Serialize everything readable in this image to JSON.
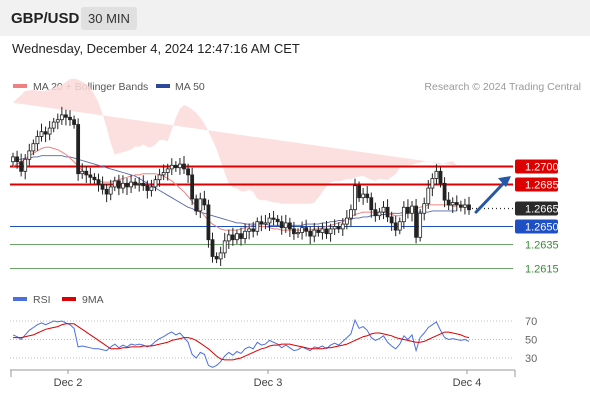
{
  "header": {
    "pair": "GBP/USD",
    "timeframe": "30 MIN"
  },
  "datetime": "Wednesday, December 4, 2024 12:47:16 AM CET",
  "legend": {
    "ma20": "MA 20 + Bollinger Bands",
    "ma50": "MA 50",
    "credit": "Research © 2024 Trading Central"
  },
  "colors": {
    "resistance": "#dd0000",
    "pivot": "#1f4fc4",
    "support": "#3a8a3a",
    "candle": "#222222",
    "ma20": "#f08080",
    "ma50": "#5566aa",
    "band": "#fbd9d9",
    "rsi": "#4c6fe0",
    "rsi_ma": "#dd0000",
    "arrow": "#2457a6",
    "current": "#2a2a2a"
  },
  "chart_data": [
    {
      "type": "candlestick",
      "x_labels": [
        "Dec 2",
        "Dec 3",
        "Dec 4"
      ],
      "ylim": [
        1.2605,
        1.276
      ],
      "current_price": 1.2665,
      "levels": [
        {
          "label": "1.2700",
          "value": 1.27,
          "kind": "resistance"
        },
        {
          "label": "1.2685",
          "value": 1.2685,
          "kind": "resistance"
        },
        {
          "label": "1.2665",
          "value": 1.2665,
          "kind": "current"
        },
        {
          "label": "1.2650",
          "value": 1.265,
          "kind": "pivot"
        },
        {
          "label": "1.2635",
          "value": 1.2635,
          "kind": "support"
        },
        {
          "label": "1.2615",
          "value": 1.2615,
          "kind": "support"
        }
      ],
      "close": [
        1.2708,
        1.2704,
        1.2696,
        1.2706,
        1.2713,
        1.2719,
        1.2725,
        1.2729,
        1.2727,
        1.2732,
        1.2737,
        1.2739,
        1.2743,
        1.2741,
        1.2739,
        1.2735,
        1.2694,
        1.2696,
        1.2693,
        1.2691,
        1.2689,
        1.2685,
        1.2681,
        1.2677,
        1.2683,
        1.2688,
        1.2682,
        1.2686,
        1.2683,
        1.2687,
        1.2685,
        1.2686,
        1.2684,
        1.268,
        1.2683,
        1.2689,
        1.2693,
        1.2695,
        1.2698,
        1.2701,
        1.2699,
        1.2702,
        1.2698,
        1.2693,
        1.2673,
        1.2663,
        1.2673,
        1.2668,
        1.2639,
        1.2625,
        1.2623,
        1.2628,
        1.2638,
        1.2643,
        1.2639,
        1.2644,
        1.264,
        1.2646,
        1.2648,
        1.2646,
        1.2654,
        1.2652,
        1.2653,
        1.2657,
        1.2656,
        1.2654,
        1.2649,
        1.2653,
        1.2648,
        1.2644,
        1.2645,
        1.2649,
        1.2646,
        1.2642,
        1.2647,
        1.2645,
        1.2648,
        1.2644,
        1.2648,
        1.265,
        1.2648,
        1.2652,
        1.2657,
        1.2664,
        1.2684,
        1.2674,
        1.2677,
        1.2674,
        1.2664,
        1.2659,
        1.2662,
        1.2666,
        1.2658,
        1.2653,
        1.2647,
        1.2654,
        1.2666,
        1.2661,
        1.2667,
        1.2641,
        1.2661,
        1.2669,
        1.2682,
        1.269,
        1.2696,
        1.2686,
        1.2672,
        1.2668,
        1.267,
        1.2668,
        1.2666,
        1.2668,
        1.2664
      ],
      "ma20": [
        1.27,
        1.2702,
        1.2704,
        1.2706,
        1.2709,
        1.2711,
        1.2713,
        1.2715,
        1.2716,
        1.2716,
        1.2715,
        1.2714,
        1.2712,
        1.271,
        1.2707,
        1.2704,
        1.27,
        1.2697,
        1.2694,
        1.2692,
        1.269,
        1.2688,
        1.2687,
        1.2687,
        1.2687,
        1.2688,
        1.2689,
        1.269,
        1.2691,
        1.2692,
        1.2693,
        1.2693,
        1.2694,
        1.2694,
        1.2694,
        1.2694,
        1.2693,
        1.2692,
        1.269,
        1.2688,
        1.2685,
        1.2682,
        1.2679,
        1.2675,
        1.2671,
        1.2667,
        1.2663,
        1.2659,
        1.2655,
        1.2652,
        1.265,
        1.2648,
        1.2647,
        1.2647,
        1.2647,
        1.2647,
        1.2648,
        1.2649,
        1.265,
        1.2651,
        1.2651,
        1.265,
        1.265,
        1.2649,
        1.2648,
        1.2648,
        1.2647,
        1.2647,
        1.2647,
        1.2647,
        1.2647,
        1.2647,
        1.2647,
        1.2647,
        1.2648,
        1.2648,
        1.2649,
        1.265,
        1.2651,
        1.2652,
        1.2653,
        1.2654,
        1.2656,
        1.2658,
        1.266,
        1.2661,
        1.2662,
        1.2662,
        1.2662,
        1.2662,
        1.2662,
        1.2662,
        1.2661,
        1.266,
        1.2659,
        1.2659,
        1.266,
        1.2661,
        1.2663,
        1.2665,
        1.2666,
        1.2667,
        1.2668,
        1.2668,
        1.2668,
        1.2668,
        1.2668,
        1.2668,
        1.2667,
        1.2667
      ],
      "ma50": [
        1.2705,
        1.2706,
        1.2706,
        1.2707,
        1.2707,
        1.2708,
        1.2708,
        1.2709,
        1.2709,
        1.2709,
        1.2709,
        1.2709,
        1.2709,
        1.2708,
        1.2708,
        1.2707,
        1.2706,
        1.2705,
        1.2704,
        1.2703,
        1.2702,
        1.2701,
        1.27,
        1.2699,
        1.2698,
        1.2697,
        1.2696,
        1.2695,
        1.2694,
        1.2693,
        1.2692,
        1.269,
        1.2688,
        1.2686,
        1.2684,
        1.2682,
        1.268,
        1.2678,
        1.2676,
        1.2674,
        1.2672,
        1.267,
        1.2668,
        1.2666,
        1.2665,
        1.2663,
        1.2662,
        1.2661,
        1.266,
        1.2659,
        1.2658,
        1.2657,
        1.2656,
        1.2655,
        1.2654,
        1.2653,
        1.2653,
        1.2652,
        1.2652,
        1.2652,
        1.2652,
        1.2652,
        1.2652,
        1.2651,
        1.2651,
        1.2651,
        1.2651,
        1.2651,
        1.2651,
        1.2651,
        1.2651,
        1.2651,
        1.2652,
        1.2652,
        1.2652,
        1.2652,
        1.2653,
        1.2653,
        1.2654,
        1.2654,
        1.2655,
        1.2655,
        1.2656,
        1.2656,
        1.2657,
        1.2657,
        1.2658,
        1.2658,
        1.2659,
        1.2659,
        1.266,
        1.266,
        1.266,
        1.2661,
        1.2661,
        1.2661,
        1.2662,
        1.2662,
        1.2662,
        1.2662,
        1.2662,
        1.2662,
        1.2662,
        1.2663,
        1.2663,
        1.2663,
        1.2663,
        1.2663,
        1.2663,
        1.2663
      ],
      "legend": [
        "MA 20 + Bollinger Bands",
        "MA 50"
      ]
    },
    {
      "type": "line",
      "title": "RSI",
      "y_ticks": [
        70,
        50,
        30
      ],
      "ylim": [
        20,
        80
      ],
      "series": [
        {
          "name": "RSI",
          "values": [
            55,
            53,
            50,
            55,
            60,
            63,
            66,
            68,
            66,
            68,
            70,
            69,
            70,
            68,
            66,
            62,
            42,
            43,
            42,
            41,
            40,
            40,
            39,
            38,
            42,
            45,
            41,
            44,
            42,
            45,
            44,
            45,
            44,
            42,
            44,
            48,
            51,
            53,
            56,
            58,
            55,
            57,
            52,
            47,
            34,
            30,
            36,
            34,
            22,
            20,
            22,
            26,
            32,
            36,
            33,
            37,
            35,
            40,
            42,
            40,
            47,
            44,
            45,
            49,
            47,
            45,
            41,
            44,
            41,
            38,
            39,
            42,
            40,
            38,
            42,
            41,
            43,
            40,
            44,
            46,
            44,
            48,
            52,
            56,
            71,
            62,
            64,
            60,
            52,
            49,
            51,
            54,
            47,
            43,
            40,
            45,
            54,
            50,
            55,
            38,
            52,
            57,
            63,
            66,
            69,
            60,
            52,
            50,
            51,
            50,
            49,
            50,
            48
          ]
        },
        {
          "name": "9MA",
          "values": [
            52,
            52,
            52,
            53,
            54,
            55,
            57,
            59,
            61,
            62,
            63,
            64,
            66,
            67,
            67,
            67,
            64,
            61,
            58,
            55,
            52,
            49,
            46,
            43,
            40,
            40,
            40,
            41,
            41,
            42,
            42,
            42,
            43,
            43,
            43,
            44,
            45,
            46,
            47,
            49,
            50,
            51,
            52,
            52,
            51,
            49,
            46,
            43,
            40,
            36,
            32,
            29,
            28,
            28,
            28,
            29,
            30,
            32,
            34,
            36,
            38,
            40,
            41,
            43,
            44,
            44,
            45,
            45,
            45,
            44,
            43,
            42,
            41,
            40,
            40,
            40,
            40,
            41,
            41,
            42,
            43,
            44,
            45,
            47,
            49,
            51,
            53,
            54,
            56,
            57,
            57,
            56,
            55,
            54,
            52,
            51,
            50,
            49,
            48,
            47,
            47,
            48,
            50,
            52,
            54,
            56,
            58,
            58,
            57,
            56,
            55,
            53,
            52
          ]
        }
      ]
    }
  ]
}
